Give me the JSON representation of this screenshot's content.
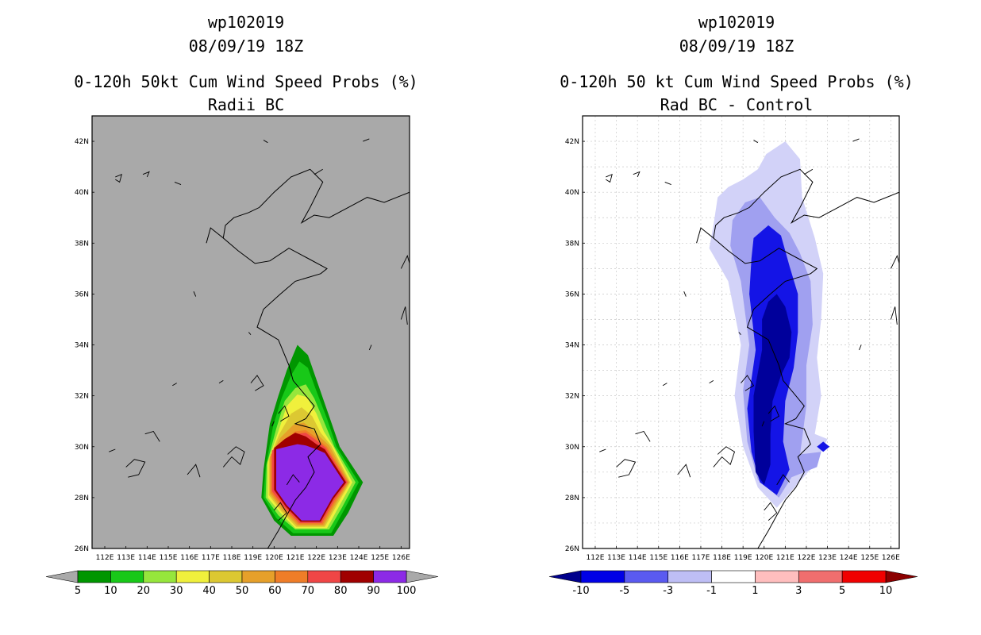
{
  "chart_data": [
    {
      "type": "heatmap",
      "id": "left",
      "title_lines": [
        "wp102019",
        "08/09/19 18Z",
        "0-120h 50kt Cum Wind Speed Probs (%)",
        "Radii BC"
      ],
      "xaxis_ticks": [
        "112E",
        "113E",
        "114E",
        "115E",
        "116E",
        "117E",
        "118E",
        "119E",
        "120E",
        "121E",
        "122E",
        "123E",
        "124E",
        "125E",
        "126E"
      ],
      "yaxis_ticks": [
        "42N",
        "40N",
        "38N",
        "36N",
        "34N",
        "32N",
        "30N",
        "28N",
        "26N"
      ],
      "xlim": [
        111.4,
        126.4
      ],
      "ylim": [
        26,
        43
      ],
      "background": "#a9a9a9",
      "colorbar": {
        "labels": [
          "5",
          "10",
          "20",
          "30",
          "40",
          "50",
          "60",
          "70",
          "80",
          "90",
          "100"
        ],
        "colors": [
          "#009600",
          "#18c818",
          "#96e63c",
          "#f0f03c",
          "#dcc832",
          "#e6a02a",
          "#ef7d28",
          "#f04646",
          "#a00000",
          "#8c2ae6"
        ],
        "end_arrows": [
          "#a9a9a9",
          "#a9a9a9"
        ]
      },
      "contour_levels": [
        {
          "value": 5,
          "color": "#009600",
          "polygon": [
            [
              119.5,
              29.1
            ],
            [
              119.8,
              30.9
            ],
            [
              120.2,
              32.0
            ],
            [
              120.6,
              33.0
            ],
            [
              121.1,
              34.0
            ],
            [
              121.6,
              33.6
            ],
            [
              122.1,
              32.4
            ],
            [
              122.6,
              31.2
            ],
            [
              123.1,
              30.0
            ],
            [
              124.2,
              28.6
            ],
            [
              123.5,
              27.4
            ],
            [
              122.8,
              26.5
            ],
            [
              120.8,
              26.5
            ],
            [
              120.0,
              27.1
            ],
            [
              119.4,
              28.0
            ]
          ]
        },
        {
          "value": 10,
          "color": "#18c818",
          "polygon": [
            [
              119.6,
              29.2
            ],
            [
              119.95,
              30.8
            ],
            [
              120.35,
              31.9
            ],
            [
              120.8,
              32.8
            ],
            [
              121.2,
              33.35
            ],
            [
              121.6,
              33.1
            ],
            [
              121.95,
              32.3
            ],
            [
              122.5,
              31.1
            ],
            [
              122.95,
              30.0
            ],
            [
              124.0,
              28.6
            ],
            [
              123.3,
              27.5
            ],
            [
              122.7,
              26.6
            ],
            [
              120.9,
              26.6
            ],
            [
              120.1,
              27.2
            ],
            [
              119.5,
              28.0
            ]
          ]
        },
        {
          "value": 20,
          "color": "#96e63c",
          "polygon": [
            [
              119.65,
              29.3
            ],
            [
              120.1,
              30.7
            ],
            [
              120.5,
              31.8
            ],
            [
              121.0,
              32.3
            ],
            [
              121.5,
              32.45
            ],
            [
              121.9,
              31.9
            ],
            [
              122.4,
              30.9
            ],
            [
              122.85,
              30.0
            ],
            [
              123.85,
              28.6
            ],
            [
              123.2,
              27.6
            ],
            [
              122.6,
              26.75
            ],
            [
              121.0,
              26.75
            ],
            [
              120.2,
              27.3
            ],
            [
              119.6,
              28.0
            ]
          ]
        },
        {
          "value": 30,
          "color": "#f0f03c",
          "polygon": [
            [
              119.7,
              29.4
            ],
            [
              120.2,
              30.6
            ],
            [
              120.6,
              31.6
            ],
            [
              121.1,
              32.05
            ],
            [
              121.55,
              31.95
            ],
            [
              122.0,
              31.3
            ],
            [
              122.35,
              30.6
            ],
            [
              122.8,
              30.0
            ],
            [
              123.7,
              28.6
            ],
            [
              123.1,
              27.7
            ],
            [
              122.5,
              26.8
            ],
            [
              121.0,
              26.8
            ],
            [
              120.3,
              27.4
            ],
            [
              119.7,
              28.0
            ]
          ]
        },
        {
          "value": 40,
          "color": "#dcc832",
          "polygon": [
            [
              119.75,
              29.5
            ],
            [
              120.25,
              30.5
            ],
            [
              120.8,
              31.3
            ],
            [
              121.3,
              31.55
            ],
            [
              121.8,
              31.2
            ],
            [
              122.2,
              30.55
            ],
            [
              122.7,
              30.05
            ],
            [
              123.6,
              28.6
            ],
            [
              123.0,
              27.75
            ],
            [
              122.4,
              26.85
            ],
            [
              121.05,
              26.85
            ],
            [
              120.35,
              27.45
            ],
            [
              119.75,
              28.1
            ]
          ]
        },
        {
          "value": 50,
          "color": "#e6a02a",
          "polygon": [
            [
              119.8,
              29.6
            ],
            [
              120.3,
              30.35
            ],
            [
              120.9,
              30.85
            ],
            [
              121.4,
              30.95
            ],
            [
              121.9,
              30.6
            ],
            [
              122.6,
              30.05
            ],
            [
              123.55,
              28.6
            ],
            [
              122.95,
              27.8
            ],
            [
              122.35,
              26.9
            ],
            [
              121.1,
              26.9
            ],
            [
              120.4,
              27.5
            ],
            [
              119.8,
              28.15
            ]
          ]
        },
        {
          "value": 60,
          "color": "#ef7d28",
          "polygon": [
            [
              119.85,
              29.7
            ],
            [
              120.4,
              30.2
            ],
            [
              121.0,
              30.6
            ],
            [
              121.5,
              30.65
            ],
            [
              122.0,
              30.35
            ],
            [
              122.5,
              30.0
            ],
            [
              123.5,
              28.6
            ],
            [
              122.9,
              27.85
            ],
            [
              122.3,
              26.95
            ],
            [
              121.15,
              26.95
            ],
            [
              120.45,
              27.55
            ],
            [
              119.85,
              28.2
            ]
          ]
        },
        {
          "value": 70,
          "color": "#f04646",
          "polygon": [
            [
              119.9,
              29.85
            ],
            [
              120.45,
              30.15
            ],
            [
              121.0,
              30.5
            ],
            [
              121.5,
              30.55
            ],
            [
              122.0,
              30.25
            ],
            [
              122.45,
              29.95
            ],
            [
              123.45,
              28.6
            ],
            [
              122.85,
              27.9
            ],
            [
              122.25,
              27.0
            ],
            [
              121.2,
              27.0
            ],
            [
              120.5,
              27.6
            ],
            [
              119.9,
              28.25
            ]
          ]
        },
        {
          "value": 80,
          "color": "#a00000",
          "polygon": [
            [
              120.0,
              29.95
            ],
            [
              120.5,
              30.3
            ],
            [
              121.0,
              30.55
            ],
            [
              121.5,
              30.4
            ],
            [
              122.0,
              30.1
            ],
            [
              122.4,
              29.9
            ],
            [
              123.4,
              28.6
            ],
            [
              122.8,
              27.95
            ],
            [
              122.2,
              27.05
            ],
            [
              121.25,
              27.05
            ],
            [
              120.55,
              27.65
            ],
            [
              120.0,
              28.3
            ]
          ]
        },
        {
          "value": 90,
          "color": "#8c2ae6",
          "polygon": [
            [
              120.1,
              29.9
            ],
            [
              120.6,
              30.0
            ],
            [
              121.1,
              30.1
            ],
            [
              121.5,
              30.05
            ],
            [
              122.0,
              29.9
            ],
            [
              122.4,
              29.75
            ],
            [
              123.3,
              28.6
            ],
            [
              122.75,
              28.0
            ],
            [
              122.15,
              27.1
            ],
            [
              121.3,
              27.1
            ],
            [
              120.6,
              27.7
            ],
            [
              120.1,
              28.3
            ]
          ]
        }
      ]
    },
    {
      "type": "heatmap",
      "id": "right",
      "title_lines": [
        "wp102019",
        "08/09/19 18Z",
        "0-120h 50 kt Cum Wind Speed Probs (%)",
        "Rad BC - Control"
      ],
      "xaxis_ticks": [
        "112E",
        "113E",
        "114E",
        "115E",
        "116E",
        "117E",
        "118E",
        "119E",
        "120E",
        "121E",
        "122E",
        "123E",
        "124E",
        "125E",
        "126E"
      ],
      "yaxis_ticks": [
        "42N",
        "40N",
        "38N",
        "36N",
        "34N",
        "32N",
        "30N",
        "28N",
        "26N"
      ],
      "xlim": [
        111.4,
        126.4
      ],
      "ylim": [
        26,
        43
      ],
      "background": "#ffffff",
      "colorbar": {
        "labels": [
          "-10",
          "-5",
          "-3",
          "-1",
          "1",
          "3",
          "5",
          "10"
        ],
        "colors": [
          "#0000e6",
          "#5a5af0",
          "#bebef5",
          "#ffffff",
          "#ffbebe",
          "#f06e6e",
          "#f00000"
        ],
        "end_arrows": [
          "#00008c",
          "#8c0000"
        ]
      },
      "contour_levels": [
        {
          "value": -1,
          "color": "#d2d2f8",
          "polygon": [
            [
              117.8,
              39.8
            ],
            [
              118.3,
              40.2
            ],
            [
              119.0,
              40.5
            ],
            [
              119.7,
              40.9
            ],
            [
              120.1,
              41.5
            ],
            [
              121.0,
              42.0
            ],
            [
              121.7,
              41.3
            ],
            [
              121.8,
              39.8
            ],
            [
              122.4,
              38.2
            ],
            [
              122.8,
              36.8
            ],
            [
              122.7,
              35.0
            ],
            [
              122.5,
              33.5
            ],
            [
              122.7,
              32.0
            ],
            [
              122.4,
              30.5
            ],
            [
              123.0,
              30.3
            ],
            [
              122.4,
              29.3
            ],
            [
              120.6,
              27.6
            ],
            [
              119.7,
              28.4
            ],
            [
              119.0,
              30.0
            ],
            [
              118.6,
              32.0
            ],
            [
              118.9,
              34.0
            ],
            [
              118.3,
              36.5
            ],
            [
              117.4,
              37.8
            ],
            [
              117.6,
              38.7
            ]
          ]
        },
        {
          "value": -3,
          "color": "#a0a0f0",
          "polygon": [
            [
              118.5,
              38.9
            ],
            [
              119.1,
              39.6
            ],
            [
              119.8,
              39.8
            ],
            [
              120.5,
              39.0
            ],
            [
              121.2,
              38.4
            ],
            [
              121.7,
              37.6
            ],
            [
              122.2,
              36.5
            ],
            [
              122.3,
              34.8
            ],
            [
              122.0,
              33.2
            ],
            [
              122.0,
              31.6
            ],
            [
              121.7,
              29.7
            ],
            [
              122.7,
              29.8
            ],
            [
              122.5,
              29.2
            ],
            [
              121.3,
              28.8
            ],
            [
              120.7,
              28.0
            ],
            [
              119.7,
              28.7
            ],
            [
              119.2,
              30.2
            ],
            [
              119.0,
              32.2
            ],
            [
              119.3,
              34.0
            ],
            [
              118.9,
              36.5
            ],
            [
              118.4,
              37.9
            ]
          ]
        },
        {
          "value": -5,
          "color": "#1414e6",
          "polygon": [
            [
              119.5,
              38.2
            ],
            [
              120.2,
              38.7
            ],
            [
              120.8,
              38.3
            ],
            [
              121.2,
              37.1
            ],
            [
              121.6,
              36.0
            ],
            [
              121.6,
              34.5
            ],
            [
              121.4,
              33.1
            ],
            [
              121.0,
              31.8
            ],
            [
              120.9,
              30.2
            ],
            [
              121.2,
              29.1
            ],
            [
              120.6,
              28.1
            ],
            [
              119.8,
              28.6
            ],
            [
              119.4,
              29.8
            ],
            [
              119.2,
              31.5
            ],
            [
              119.6,
              33.8
            ],
            [
              119.3,
              36.0
            ],
            [
              119.4,
              37.4
            ]
          ]
        },
        {
          "value": -10,
          "color": "#00009b",
          "polygon": [
            [
              120.2,
              35.7
            ],
            [
              120.6,
              36.0
            ],
            [
              121.0,
              35.5
            ],
            [
              121.3,
              34.5
            ],
            [
              121.2,
              33.5
            ],
            [
              120.8,
              32.8
            ],
            [
              120.4,
              31.8
            ],
            [
              120.3,
              30.5
            ],
            [
              120.3,
              29.3
            ],
            [
              120.0,
              28.5
            ],
            [
              119.6,
              29.0
            ],
            [
              119.5,
              30.6
            ],
            [
              119.5,
              32.0
            ],
            [
              119.9,
              33.8
            ],
            [
              119.9,
              35.0
            ]
          ]
        },
        {
          "value": -5,
          "color": "#1414e6",
          "polygon": [
            [
              122.8,
              30.2
            ],
            [
              123.1,
              30.0
            ],
            [
              122.8,
              29.8
            ],
            [
              122.5,
              30.0
            ]
          ]
        }
      ]
    }
  ]
}
